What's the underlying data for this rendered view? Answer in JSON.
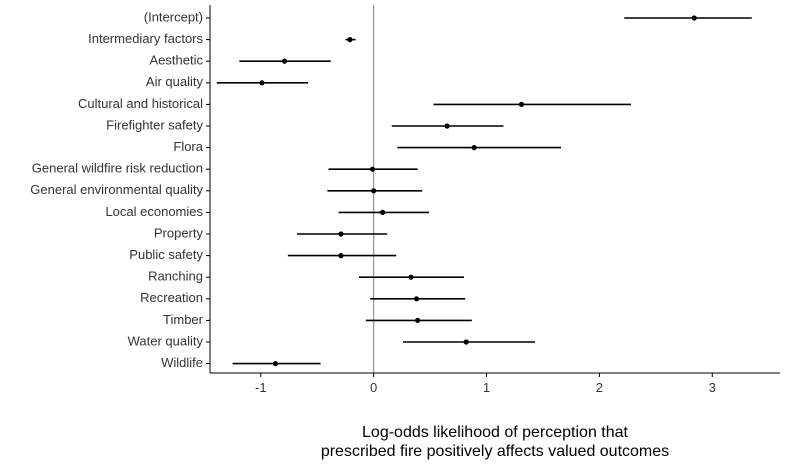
{
  "chart_data": {
    "type": "forest",
    "title": "",
    "xlabel_lines": [
      "Log-odds likelihood of perception that",
      "prescribed fire positively affects valued outcomes"
    ],
    "ylabel": "",
    "xlim": [
      -1.45,
      3.6
    ],
    "xticks": [
      -1,
      0,
      1,
      2,
      3
    ],
    "xtick_labels": [
      "-1",
      "0",
      "1",
      "2",
      "3"
    ],
    "reference_line_x": 0,
    "grid": false,
    "colors": {
      "point": "#000000",
      "interval": "#000000",
      "refline": "#7f7f7f",
      "axis": "#000000"
    },
    "rows": [
      {
        "label": "(Intercept)",
        "estimate": 2.84,
        "lower": 2.22,
        "upper": 3.35
      },
      {
        "label": "Intermediary factors",
        "estimate": -0.21,
        "lower": -0.25,
        "upper": -0.16
      },
      {
        "label": "Aesthetic",
        "estimate": -0.79,
        "lower": -1.19,
        "upper": -0.38
      },
      {
        "label": "Air quality",
        "estimate": -0.99,
        "lower": -1.39,
        "upper": -0.58
      },
      {
        "label": "Cultural and historical",
        "estimate": 1.31,
        "lower": 0.53,
        "upper": 2.28
      },
      {
        "label": "Firefighter safety",
        "estimate": 0.65,
        "lower": 0.16,
        "upper": 1.15
      },
      {
        "label": "Flora",
        "estimate": 0.89,
        "lower": 0.21,
        "upper": 1.66
      },
      {
        "label": "General wildfire risk reduction",
        "estimate": -0.01,
        "lower": -0.4,
        "upper": 0.39
      },
      {
        "label": "General environmental quality",
        "estimate": 0.0,
        "lower": -0.41,
        "upper": 0.43
      },
      {
        "label": "Local economies",
        "estimate": 0.08,
        "lower": -0.31,
        "upper": 0.49
      },
      {
        "label": "Property",
        "estimate": -0.29,
        "lower": -0.68,
        "upper": 0.12
      },
      {
        "label": "Public safety",
        "estimate": -0.29,
        "lower": -0.76,
        "upper": 0.2
      },
      {
        "label": "Ranching",
        "estimate": 0.33,
        "lower": -0.13,
        "upper": 0.8
      },
      {
        "label": "Recreation",
        "estimate": 0.38,
        "lower": -0.03,
        "upper": 0.81
      },
      {
        "label": "Timber",
        "estimate": 0.39,
        "lower": -0.07,
        "upper": 0.87
      },
      {
        "label": "Water quality",
        "estimate": 0.82,
        "lower": 0.26,
        "upper": 1.43
      },
      {
        "label": "Wildlife",
        "estimate": -0.87,
        "lower": -1.25,
        "upper": -0.47
      }
    ]
  }
}
